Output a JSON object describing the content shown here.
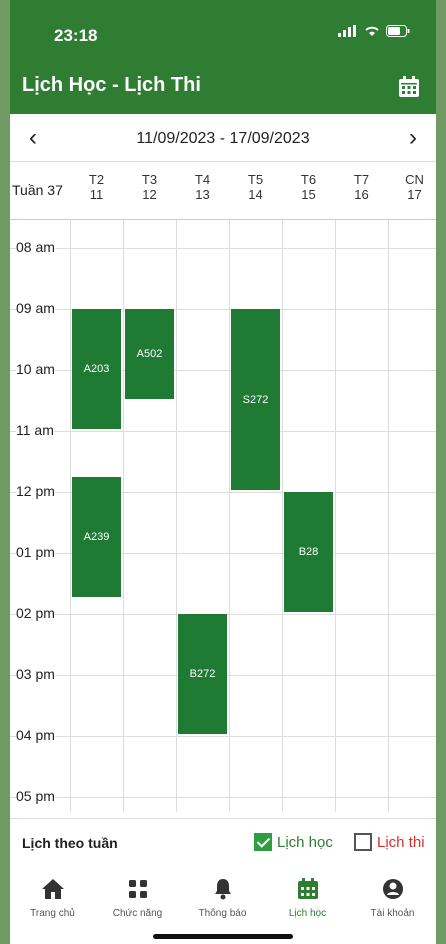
{
  "status": {
    "time": "23:18"
  },
  "appbar": {
    "title": "Lịch Học - Lịch Thi"
  },
  "week": {
    "range": "11/09/2023 - 17/09/2023",
    "label": "Tuần 37",
    "prev": "‹",
    "next": "›"
  },
  "days": [
    {
      "name": "T2",
      "date": "11"
    },
    {
      "name": "T3",
      "date": "12"
    },
    {
      "name": "T4",
      "date": "13"
    },
    {
      "name": "T5",
      "date": "14"
    },
    {
      "name": "T6",
      "date": "15"
    },
    {
      "name": "T7",
      "date": "16"
    },
    {
      "name": "CN",
      "date": "17"
    }
  ],
  "times": [
    "08 am",
    "09 am",
    "10 am",
    "11 am",
    "12 pm",
    "01 pm",
    "02 pm",
    "03 pm",
    "04 pm",
    "05 pm"
  ],
  "events": [
    {
      "room": "A203",
      "day": 0,
      "start": 9.0,
      "end": 11.0
    },
    {
      "room": "A239",
      "day": 0,
      "start": 11.75,
      "end": 13.75
    },
    {
      "room": "A502",
      "day": 1,
      "start": 9.0,
      "end": 10.5
    },
    {
      "room": "B272",
      "day": 2,
      "start": 14.0,
      "end": 16.0
    },
    {
      "room": "S272",
      "day": 3,
      "start": 9.0,
      "end": 12.0
    },
    {
      "room": "B28",
      "day": 4,
      "start": 12.0,
      "end": 14.0
    }
  ],
  "filter": {
    "label": "Lịch theo tuần",
    "study": "Lịch học",
    "exam": "Lịch thi",
    "study_checked": true,
    "exam_checked": false
  },
  "nav": [
    {
      "label": "Trang chủ",
      "icon": "home-icon"
    },
    {
      "label": "Chức năng",
      "icon": "grid-icon"
    },
    {
      "label": "Thông báo",
      "icon": "bell-icon"
    },
    {
      "label": "Lịch học",
      "icon": "calendar-icon",
      "active": true
    },
    {
      "label": "Tài khoản",
      "icon": "account-icon"
    }
  ],
  "colors": {
    "primary": "#2e7d32",
    "event": "#1f7a34",
    "exam": "#d32f2f"
  }
}
